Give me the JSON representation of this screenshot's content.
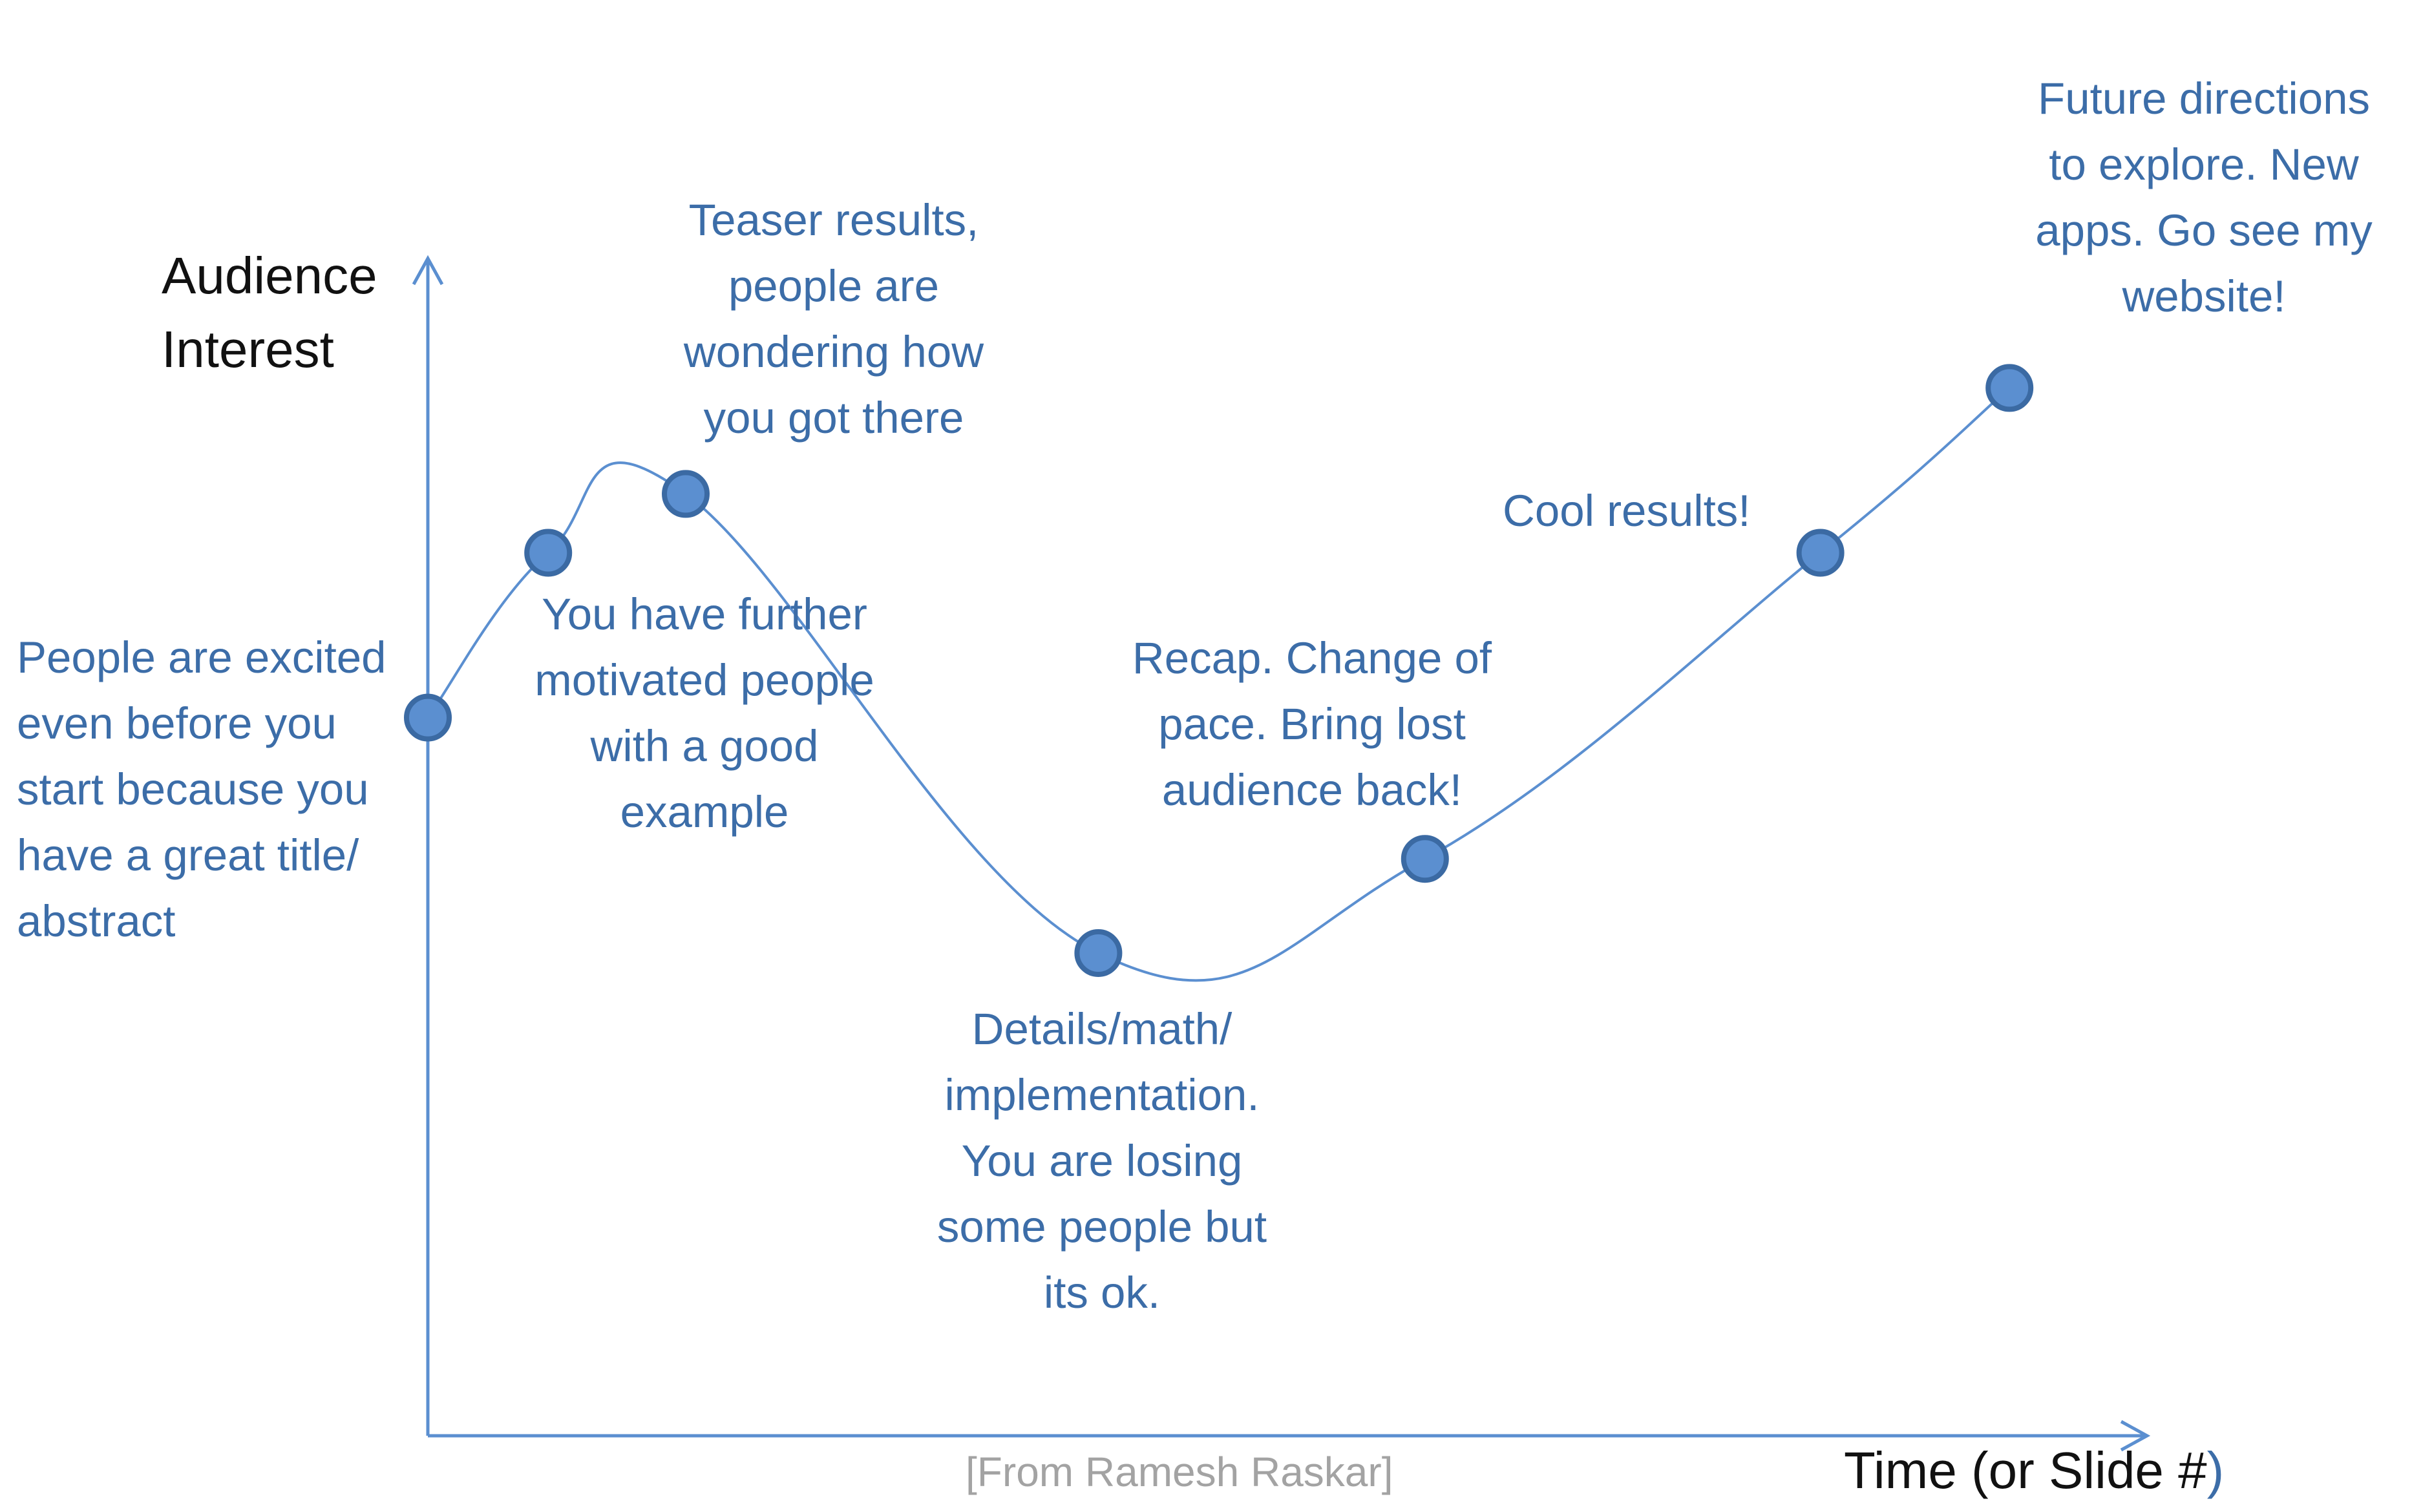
{
  "axes": {
    "y_label": "Audience\nInterest",
    "x_label": "Time (or Slide #",
    "x_label_close": ")",
    "axis_color": "#5b8fd0"
  },
  "credit": "[From Ramesh Raskar]",
  "curve_color": "#5b8fd0",
  "point_fill": "#5b8fd0",
  "point_stroke": "#3b6aa3",
  "text_color": "#3c6da8",
  "chart_data": {
    "type": "line",
    "points": [
      {
        "x": 0,
        "y": 0.61,
        "label": "People are excited\neven before you\nstart because you\nhave a great title/\nabstract"
      },
      {
        "x": 0.07,
        "y": 0.75,
        "label": "You have further\nmotivated people\nwith a good\nexample"
      },
      {
        "x": 0.15,
        "y": 0.8,
        "label": "Teaser results,\npeople are\nwondering how\nyou got there"
      },
      {
        "x": 0.39,
        "y": 0.41,
        "label": "Details/math/\nimplementation.\nYou are losing\nsome people but\nits ok."
      },
      {
        "x": 0.58,
        "y": 0.49,
        "label": "Recap. Change of\npace. Bring lost\naudience back!"
      },
      {
        "x": 0.81,
        "y": 0.75,
        "label": "Cool results!"
      },
      {
        "x": 0.92,
        "y": 0.89,
        "label": "Future directions\nto explore. New\napps. Go see my\nwebsite!"
      }
    ]
  }
}
